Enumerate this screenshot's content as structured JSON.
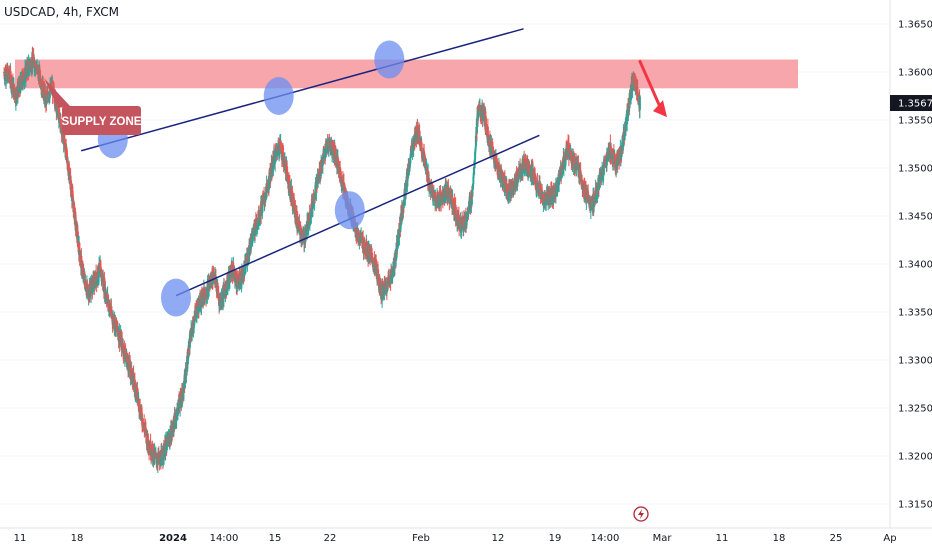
{
  "symbol_line": "USDCAD, 4h, FXCM",
  "colors": {
    "up": "#26a69a",
    "down": "#ef5350",
    "supply_zone": "#f7a1a6",
    "label_bg": "#c4545e",
    "trendline": "#1a237e",
    "circle": "#6b8df0",
    "arrow": "#f23645",
    "price_tag": "#131722"
  },
  "chart_data": {
    "type": "candlestick",
    "symbol": "USDCAD",
    "timeframe": "4h",
    "source": "FXCM",
    "last_price": "1.35677",
    "ylim": [
      1.3125,
      1.3675
    ],
    "y_ticks": [
      "1.36500",
      "1.36000",
      "1.35500",
      "1.35000",
      "1.34500",
      "1.34000",
      "1.33500",
      "1.33000",
      "1.32500",
      "1.32000",
      "1.31500"
    ],
    "x_ticks": [
      "11",
      "18",
      "2024",
      "14:00",
      "15",
      "22",
      "Feb",
      "12",
      "19",
      "14:00",
      "Mar",
      "11",
      "18",
      "25",
      "Ap"
    ],
    "supply_zone": {
      "low": 1.3583,
      "high": 1.3613,
      "label": "SUPPLY ZONE"
    },
    "trendline_upper": {
      "from": [
        "Jan 19",
        1.3518
      ],
      "to": [
        "Mar 15",
        1.3645
      ]
    },
    "trendline_lower": {
      "from": [
        "Jan 31",
        1.3367
      ],
      "to": [
        "Mar 17",
        1.3534
      ]
    },
    "touch_points": [
      {
        "label": "upper 1",
        "x": "Jan 23",
        "y": 1.353
      },
      {
        "label": "lower 1",
        "x": "Jan 31",
        "y": 1.3365
      },
      {
        "label": "upper 2",
        "x": "Feb 13",
        "y": 1.3575
      },
      {
        "label": "lower 2",
        "x": "Feb 22",
        "y": 1.3456
      },
      {
        "label": "upper 3",
        "x": "Feb 27",
        "y": 1.3613
      }
    ],
    "arrow": {
      "direction": "down",
      "from": 1.3611,
      "to": 1.3553
    },
    "price_path": [
      [
        1.36,
        1.3595,
        1.3575,
        1.359,
        1.3605,
        1.3612,
        1.3595,
        1.357,
        1.3585,
        1.356,
        1.353,
        1.349,
        1.344,
        1.3395,
        1.337,
        1.338,
        1.3395,
        1.337,
        1.3345,
        1.333
      ],
      [
        1.331,
        1.329,
        1.327,
        1.324,
        1.3215,
        1.32,
        1.3195,
        1.321,
        1.3225,
        1.325,
        1.327,
        1.332,
        1.335,
        1.3365,
        1.3375,
        1.339,
        1.336,
        1.3375,
        1.3395,
        1.338
      ],
      [
        1.339,
        1.342,
        1.344,
        1.346,
        1.348,
        1.351,
        1.3525,
        1.35,
        1.347,
        1.344,
        1.3425,
        1.345,
        1.348,
        1.3505,
        1.3525,
        1.352,
        1.3495,
        1.347,
        1.345,
        1.343
      ],
      [
        1.342,
        1.341,
        1.3395,
        1.337,
        1.338,
        1.3395,
        1.344,
        1.348,
        1.352,
        1.354,
        1.351,
        1.348,
        1.3465,
        1.347,
        1.3475,
        1.346,
        1.344,
        1.3445,
        1.347,
        1.356
      ],
      [
        1.3555,
        1.3525,
        1.3505,
        1.349,
        1.3475,
        1.348,
        1.3495,
        1.3505,
        1.3495,
        1.348,
        1.3465,
        1.347,
        1.3475,
        1.35,
        1.352,
        1.3505,
        1.3495,
        1.347,
        1.346,
        1.348
      ],
      [
        1.35,
        1.352,
        1.3505,
        1.352,
        1.356,
        1.3595,
        1.3567
      ]
    ]
  }
}
